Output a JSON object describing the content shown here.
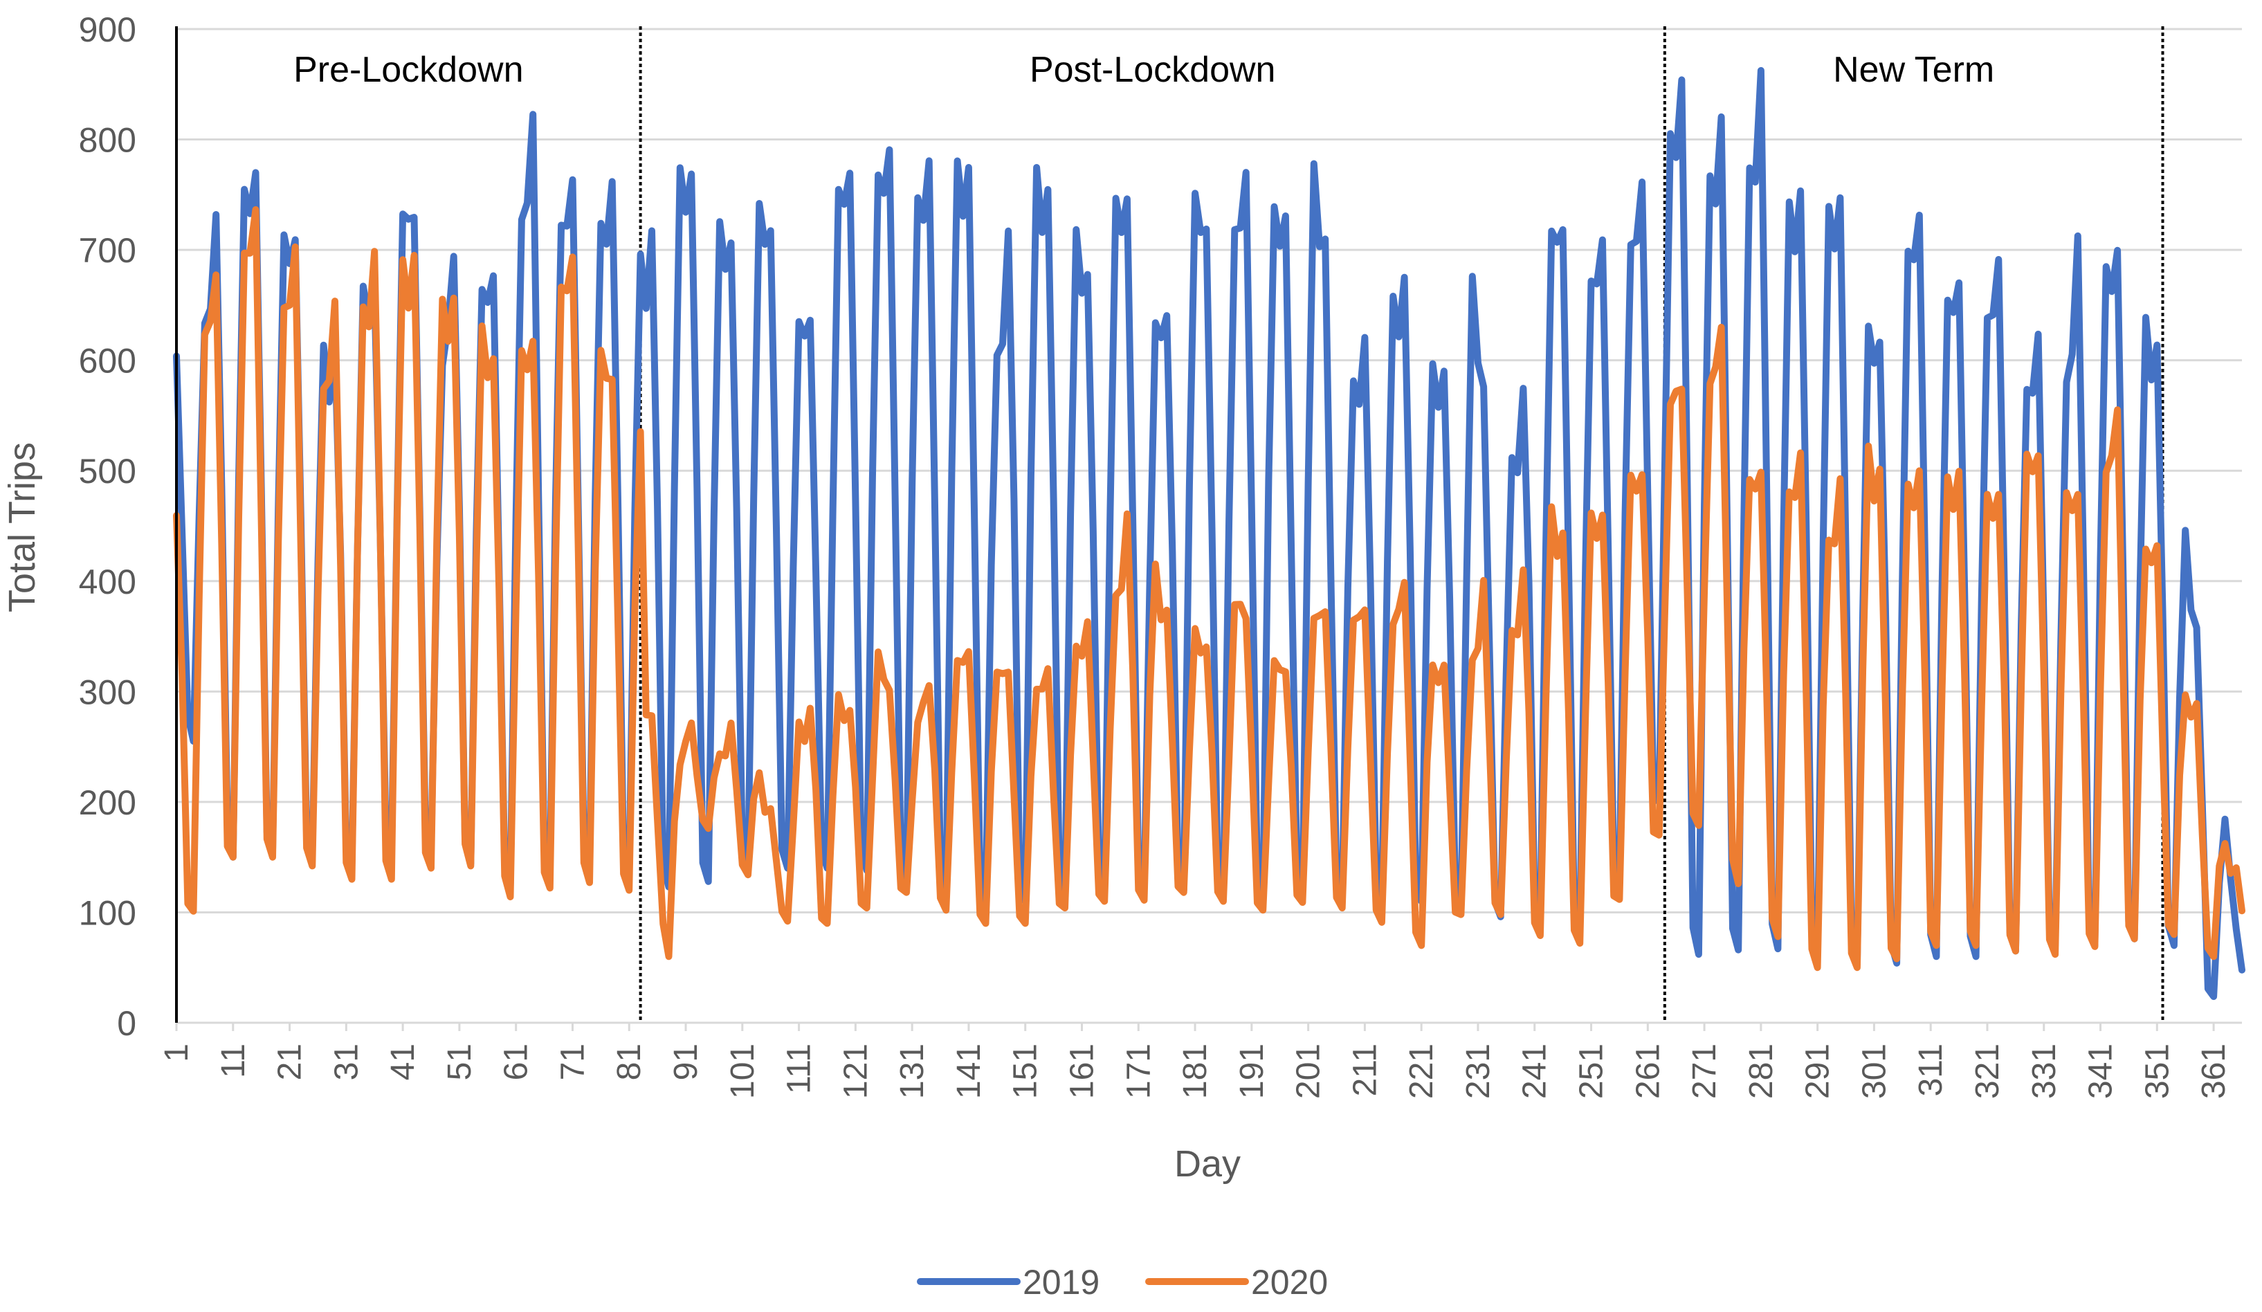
{
  "chart_data": {
    "type": "line",
    "title": "",
    "xlabel": "Day",
    "ylabel": "Total Trips",
    "ylim": [
      0,
      900
    ],
    "yticks": [
      0,
      100,
      200,
      300,
      400,
      500,
      600,
      700,
      800,
      900
    ],
    "xlim": [
      1,
      366
    ],
    "xticks": [
      1,
      11,
      21,
      31,
      41,
      51,
      61,
      71,
      81,
      91,
      101,
      111,
      121,
      131,
      141,
      151,
      161,
      171,
      181,
      191,
      201,
      211,
      221,
      231,
      241,
      251,
      261,
      271,
      281,
      291,
      301,
      311,
      321,
      331,
      341,
      351,
      361
    ],
    "grid": "horizontal",
    "legend": "bottom-center",
    "phase_dividers": [
      83,
      264,
      352
    ],
    "phases": [
      {
        "label": "Pre-Lockdown",
        "start": 1,
        "end": 83
      },
      {
        "label": "Post-Lockdown",
        "start": 83,
        "end": 264
      },
      {
        "label": "New Term",
        "start": 264,
        "end": 352
      }
    ],
    "series": [
      {
        "name": "2019",
        "color": "#4472C4",
        "weekday_levels": [
          [
            1,
            590
          ],
          [
            3,
            560
          ],
          [
            8,
            720
          ],
          [
            11,
            745
          ],
          [
            14,
            790
          ],
          [
            18,
            690
          ],
          [
            21,
            740
          ],
          [
            24,
            660
          ],
          [
            28,
            600
          ],
          [
            31,
            670
          ],
          [
            35,
            670
          ],
          [
            38,
            690
          ],
          [
            42,
            760
          ],
          [
            45,
            700
          ],
          [
            48,
            610
          ],
          [
            51,
            740
          ],
          [
            55,
            690
          ],
          [
            58,
            660
          ],
          [
            62,
            760
          ],
          [
            64,
            810
          ],
          [
            66,
            700
          ],
          [
            70,
            770
          ],
          [
            73,
            710
          ],
          [
            77,
            760
          ],
          [
            80,
            740
          ],
          [
            84,
            700
          ],
          [
            88,
            770
          ],
          [
            91,
            790
          ],
          [
            95,
            740
          ],
          [
            99,
            720
          ],
          [
            103,
            760
          ],
          [
            106,
            730
          ],
          [
            110,
            650
          ],
          [
            114,
            640
          ],
          [
            118,
            780
          ],
          [
            121,
            760
          ],
          [
            125,
            800
          ],
          [
            128,
            770
          ],
          [
            132,
            780
          ],
          [
            135,
            760
          ],
          [
            139,
            810
          ],
          [
            142,
            740
          ],
          [
            146,
            620
          ],
          [
            149,
            760
          ],
          [
            152,
            800
          ],
          [
            155,
            760
          ],
          [
            159,
            740
          ],
          [
            162,
            690
          ],
          [
            166,
            750
          ],
          [
            169,
            760
          ],
          [
            173,
            640
          ],
          [
            176,
            650
          ],
          [
            180,
            800
          ],
          [
            183,
            720
          ],
          [
            187,
            740
          ],
          [
            191,
            770
          ],
          [
            194,
            800
          ],
          [
            198,
            690
          ],
          [
            202,
            810
          ],
          [
            205,
            640
          ],
          [
            209,
            600
          ],
          [
            212,
            620
          ],
          [
            216,
            670
          ],
          [
            219,
            680
          ],
          [
            223,
            600
          ],
          [
            227,
            600
          ],
          [
            230,
            680
          ],
          [
            234,
            500
          ],
          [
            238,
            520
          ],
          [
            241,
            720
          ],
          [
            245,
            740
          ],
          [
            248,
            690
          ],
          [
            252,
            700
          ],
          [
            256,
            720
          ],
          [
            260,
            750
          ],
          [
            263,
            700
          ],
          [
            265,
            840
          ],
          [
            267,
            840
          ],
          [
            271,
            790
          ],
          [
            274,
            810
          ],
          [
            277,
            730
          ],
          [
            281,
            860
          ],
          [
            284,
            750
          ],
          [
            288,
            760
          ],
          [
            292,
            740
          ],
          [
            295,
            760
          ],
          [
            299,
            640
          ],
          [
            302,
            630
          ],
          [
            306,
            700
          ],
          [
            309,
            740
          ],
          [
            313,
            680
          ],
          [
            316,
            670
          ],
          [
            320,
            660
          ],
          [
            324,
            690
          ],
          [
            327,
            600
          ],
          [
            330,
            610
          ],
          [
            334,
            560
          ],
          [
            337,
            700
          ],
          [
            340,
            680
          ],
          [
            343,
            720
          ],
          [
            346,
            640
          ],
          [
            349,
            650
          ],
          [
            352,
            600
          ],
          [
            366,
            60
          ]
        ],
        "weekend_levels": [
          [
            1,
            300
          ],
          [
            11,
            150
          ],
          [
            21,
            160
          ],
          [
            31,
            140
          ],
          [
            41,
            160
          ],
          [
            51,
            150
          ],
          [
            61,
            120
          ],
          [
            71,
            150
          ],
          [
            81,
            130
          ],
          [
            91,
            120
          ],
          [
            101,
            140
          ],
          [
            111,
            140
          ],
          [
            121,
            140
          ],
          [
            131,
            130
          ],
          [
            141,
            110
          ],
          [
            151,
            110
          ],
          [
            161,
            120
          ],
          [
            171,
            120
          ],
          [
            181,
            120
          ],
          [
            191,
            110
          ],
          [
            201,
            120
          ],
          [
            211,
            110
          ],
          [
            221,
            110
          ],
          [
            231,
            100
          ],
          [
            241,
            90
          ],
          [
            251,
            80
          ],
          [
            263,
            200
          ],
          [
            266,
            70
          ],
          [
            271,
            60
          ],
          [
            281,
            70
          ],
          [
            291,
            60
          ],
          [
            301,
            50
          ],
          [
            311,
            60
          ],
          [
            321,
            60
          ],
          [
            331,
            70
          ],
          [
            341,
            70
          ],
          [
            351,
            80
          ],
          [
            354,
            70
          ],
          [
            358,
            20
          ],
          [
            366,
            30
          ]
        ]
      },
      {
        "name": "2020",
        "color": "#ED7D31",
        "weekday_levels": [
          [
            1,
            470
          ],
          [
            5,
            620
          ],
          [
            8,
            680
          ],
          [
            12,
            720
          ],
          [
            15,
            730
          ],
          [
            19,
            670
          ],
          [
            22,
            690
          ],
          [
            26,
            580
          ],
          [
            29,
            640
          ],
          [
            32,
            650
          ],
          [
            36,
            690
          ],
          [
            40,
            710
          ],
          [
            44,
            690
          ],
          [
            48,
            660
          ],
          [
            52,
            670
          ],
          [
            56,
            620
          ],
          [
            60,
            600
          ],
          [
            63,
            620
          ],
          [
            67,
            660
          ],
          [
            71,
            700
          ],
          [
            74,
            680
          ],
          [
            78,
            580
          ],
          [
            81,
            590
          ],
          [
            83,
            560
          ],
          [
            84,
            280
          ],
          [
            88,
            230
          ],
          [
            91,
            260
          ],
          [
            95,
            250
          ],
          [
            99,
            260
          ],
          [
            103,
            250
          ],
          [
            107,
            170
          ],
          [
            111,
            270
          ],
          [
            115,
            310
          ],
          [
            118,
            290
          ],
          [
            122,
            300
          ],
          [
            125,
            330
          ],
          [
            129,
            300
          ],
          [
            132,
            270
          ],
          [
            136,
            360
          ],
          [
            140,
            330
          ],
          [
            144,
            360
          ],
          [
            148,
            310
          ],
          [
            152,
            330
          ],
          [
            156,
            300
          ],
          [
            160,
            360
          ],
          [
            164,
            340
          ],
          [
            167,
            400
          ],
          [
            170,
            480
          ],
          [
            174,
            420
          ],
          [
            178,
            330
          ],
          [
            182,
            360
          ],
          [
            186,
            320
          ],
          [
            189,
            400
          ],
          [
            193,
            320
          ],
          [
            197,
            330
          ],
          [
            201,
            370
          ],
          [
            205,
            380
          ],
          [
            209,
            380
          ],
          [
            213,
            360
          ],
          [
            217,
            390
          ],
          [
            221,
            380
          ],
          [
            225,
            310
          ],
          [
            229,
            320
          ],
          [
            232,
            390
          ],
          [
            236,
            340
          ],
          [
            240,
            430
          ],
          [
            244,
            470
          ],
          [
            248,
            430
          ],
          [
            252,
            470
          ],
          [
            256,
            480
          ],
          [
            260,
            510
          ],
          [
            263,
            520
          ],
          [
            266,
            590
          ],
          [
            270,
            560
          ],
          [
            274,
            630
          ],
          [
            277,
            540
          ],
          [
            281,
            490
          ],
          [
            285,
            510
          ],
          [
            289,
            500
          ],
          [
            293,
            460
          ],
          [
            297,
            500
          ],
          [
            300,
            540
          ],
          [
            304,
            450
          ],
          [
            308,
            510
          ],
          [
            312,
            480
          ],
          [
            316,
            510
          ],
          [
            320,
            470
          ],
          [
            324,
            500
          ],
          [
            328,
            520
          ],
          [
            332,
            530
          ],
          [
            336,
            480
          ],
          [
            340,
            490
          ],
          [
            344,
            550
          ],
          [
            348,
            470
          ],
          [
            351,
            420
          ],
          [
            366,
            110
          ]
        ],
        "weekend_levels": [
          [
            1,
            80
          ],
          [
            11,
            150
          ],
          [
            21,
            150
          ],
          [
            31,
            130
          ],
          [
            41,
            130
          ],
          [
            51,
            150
          ],
          [
            61,
            110
          ],
          [
            71,
            130
          ],
          [
            81,
            120
          ],
          [
            84,
            160
          ],
          [
            88,
            60
          ],
          [
            91,
            200
          ],
          [
            101,
            140
          ],
          [
            111,
            80
          ],
          [
            121,
            100
          ],
          [
            131,
            120
          ],
          [
            141,
            90
          ],
          [
            151,
            90
          ],
          [
            161,
            110
          ],
          [
            171,
            110
          ],
          [
            181,
            120
          ],
          [
            191,
            100
          ],
          [
            201,
            110
          ],
          [
            211,
            100
          ],
          [
            221,
            70
          ],
          [
            231,
            110
          ],
          [
            241,
            80
          ],
          [
            251,
            70
          ],
          [
            263,
            170
          ],
          [
            271,
            180
          ],
          [
            281,
            90
          ],
          [
            291,
            50
          ],
          [
            301,
            50
          ],
          [
            311,
            70
          ],
          [
            321,
            70
          ],
          [
            331,
            60
          ],
          [
            341,
            70
          ],
          [
            351,
            80
          ],
          [
            354,
            80
          ],
          [
            361,
            60
          ],
          [
            366,
            80
          ]
        ]
      }
    ]
  }
}
